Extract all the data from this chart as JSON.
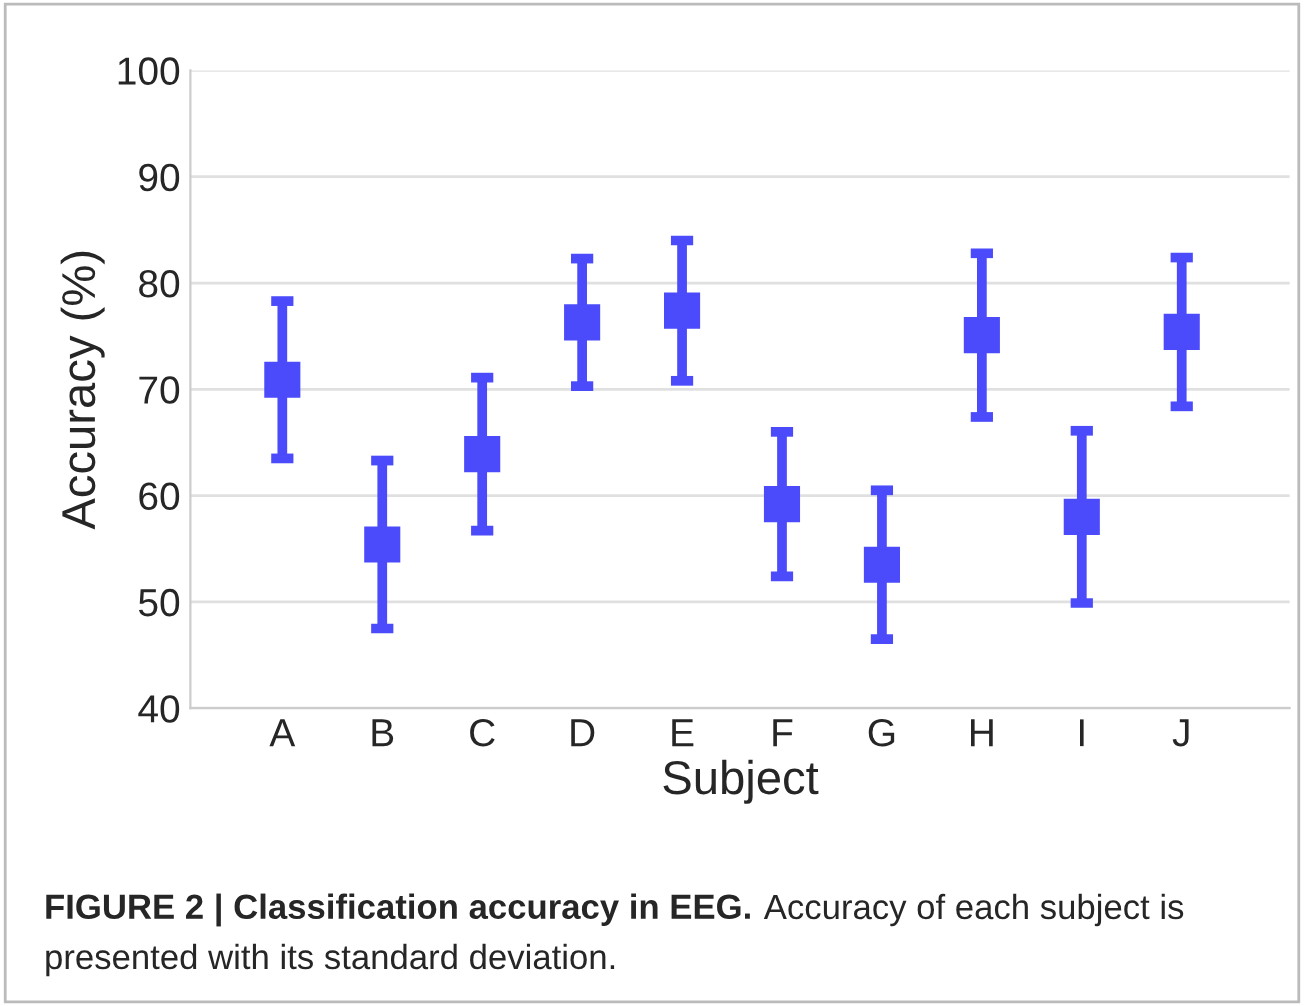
{
  "chart_data": {
    "type": "scatter",
    "xlabel": "Subject",
    "ylabel": "Accuracy (%)",
    "categories": [
      "A",
      "B",
      "C",
      "D",
      "E",
      "F",
      "G",
      "H",
      "I",
      "J"
    ],
    "series": [
      {
        "color": "#4b4bfb",
        "values": [
          70.9,
          55.4,
          63.9,
          76.3,
          77.4,
          59.2,
          53.5,
          75.1,
          58.0,
          75.4
        ],
        "errors": [
          7.4,
          7.9,
          7.2,
          6.0,
          6.6,
          6.8,
          7.0,
          7.7,
          8.1,
          7.0
        ]
      }
    ],
    "marker": "square",
    "ylim": [
      40,
      100
    ],
    "yticks": [
      40,
      50,
      60,
      70,
      80,
      90,
      100
    ],
    "grid": "y",
    "annotations": [
      "FIGURE 2 | Classification accuracy in EEG.",
      "Accuracy of each subject is",
      "presented with its standard deviation."
    ]
  }
}
